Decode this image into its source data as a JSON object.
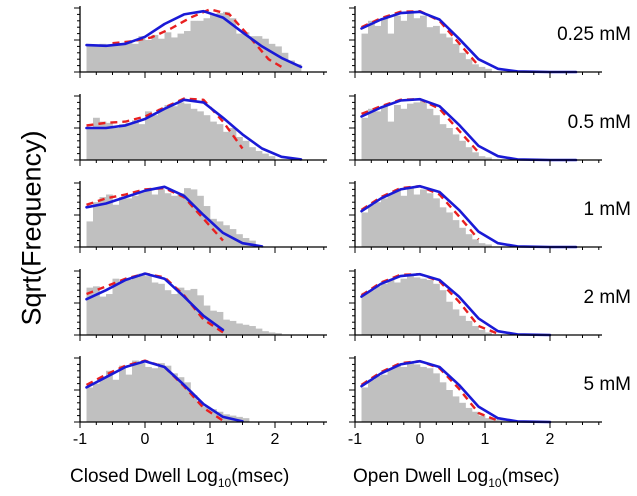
{
  "y_axis_label": "Sqrt(Frequency)",
  "x_axis_labels": {
    "closed": {
      "prefix": "Closed Dwell Log",
      "sub": "10",
      "suffix": "(msec)"
    },
    "open": {
      "prefix": "Open Dwell Log",
      "sub": "10",
      "suffix": "(msec)"
    }
  },
  "colors": {
    "histogram": "#c0c0c0",
    "fit_solid": "#1a1ad6",
    "fit_dashed": "#e82020",
    "axis": "#000000"
  },
  "chart_data": {
    "type": "histogram-grid",
    "x_tick_labels": [
      "-1",
      "0",
      "1",
      "2"
    ],
    "xlim": [
      -1,
      2.8
    ],
    "ylim": [
      0,
      1
    ],
    "grid": false,
    "y_tick_labels_shown": false,
    "panels": [
      {
        "conc": "0.25 mM",
        "kind": "closed",
        "bins": {
          "start": -0.9,
          "width": 0.1,
          "heights": [
            0.42,
            0.42,
            0.44,
            0.4,
            0.46,
            0.44,
            0.46,
            0.44,
            0.56,
            0.5,
            0.58,
            0.52,
            0.62,
            0.54,
            0.6,
            0.64,
            0.8,
            0.8,
            0.84,
            0.9,
            0.92,
            0.94,
            0.84,
            0.6,
            0.62,
            0.56,
            0.56,
            0.52,
            0.44,
            0.4,
            0.3,
            0.18,
            0.12
          ]
        },
        "solid": {
          "x": [
            -0.9,
            -0.6,
            -0.3,
            0.0,
            0.3,
            0.6,
            0.9,
            1.2,
            1.5,
            1.8,
            2.1,
            2.4
          ],
          "y": [
            0.42,
            0.41,
            0.44,
            0.55,
            0.75,
            0.9,
            0.95,
            0.85,
            0.62,
            0.4,
            0.22,
            0.08
          ]
        },
        "dashed": {
          "x": [
            -0.5,
            -0.2,
            0.1,
            0.4,
            0.7,
            1.0,
            1.3,
            1.6,
            1.9,
            2.1
          ],
          "y": [
            0.45,
            0.48,
            0.54,
            0.68,
            0.85,
            0.98,
            0.9,
            0.56,
            0.2,
            0.08
          ]
        }
      },
      {
        "conc": "0.25 mM",
        "kind": "open",
        "bins": {
          "start": -0.9,
          "width": 0.1,
          "heights": [
            0.6,
            0.8,
            0.72,
            0.84,
            0.6,
            0.88,
            0.8,
            0.92,
            0.84,
            0.88,
            0.7,
            0.72,
            0.6,
            0.54,
            0.44,
            0.3,
            0.2,
            0.12,
            0.08,
            0.05
          ]
        },
        "solid": {
          "x": [
            -0.9,
            -0.6,
            -0.3,
            0.0,
            0.3,
            0.6,
            0.9,
            1.2,
            1.5,
            2.0,
            2.4
          ],
          "y": [
            0.68,
            0.82,
            0.92,
            0.94,
            0.82,
            0.52,
            0.2,
            0.05,
            0.01,
            0.0,
            0.0
          ]
        },
        "dashed": {
          "x": [
            -0.9,
            -0.6,
            -0.3,
            0.0,
            0.3,
            0.6,
            0.9
          ],
          "y": [
            0.7,
            0.84,
            0.94,
            0.95,
            0.8,
            0.45,
            0.1
          ]
        }
      },
      {
        "conc": "0.5 mM",
        "kind": "closed",
        "bins": {
          "start": -0.9,
          "width": 0.1,
          "heights": [
            0.52,
            0.66,
            0.6,
            0.58,
            0.5,
            0.56,
            0.58,
            0.62,
            0.56,
            0.76,
            0.7,
            0.8,
            0.86,
            0.84,
            0.9,
            0.88,
            0.8,
            0.76,
            0.7,
            0.6,
            0.56,
            0.44,
            0.5,
            0.36,
            0.3,
            0.2,
            0.14,
            0.1,
            0.06
          ]
        },
        "solid": {
          "x": [
            -0.9,
            -0.6,
            -0.3,
            0.0,
            0.3,
            0.6,
            0.9,
            1.2,
            1.5,
            1.8,
            2.1,
            2.4
          ],
          "y": [
            0.5,
            0.5,
            0.54,
            0.64,
            0.8,
            0.94,
            0.9,
            0.66,
            0.4,
            0.18,
            0.05,
            0.01
          ]
        },
        "dashed": {
          "x": [
            -0.9,
            -0.6,
            -0.3,
            0.0,
            0.3,
            0.6,
            0.9,
            1.2,
            1.5
          ],
          "y": [
            0.54,
            0.58,
            0.6,
            0.68,
            0.82,
            0.96,
            0.94,
            0.6,
            0.18
          ]
        }
      },
      {
        "conc": "0.5 mM",
        "kind": "open",
        "bins": {
          "start": -0.9,
          "width": 0.1,
          "heights": [
            0.66,
            0.8,
            0.76,
            0.84,
            0.6,
            0.86,
            0.8,
            0.88,
            0.9,
            0.92,
            0.8,
            0.7,
            0.56,
            0.5,
            0.4,
            0.3,
            0.2,
            0.12,
            0.06,
            0.04
          ]
        },
        "solid": {
          "x": [
            -0.9,
            -0.6,
            -0.3,
            0.0,
            0.3,
            0.6,
            0.9,
            1.2,
            1.5,
            2.0,
            2.4
          ],
          "y": [
            0.68,
            0.82,
            0.93,
            0.95,
            0.84,
            0.55,
            0.22,
            0.06,
            0.01,
            0.0,
            0.0
          ]
        },
        "dashed": {
          "x": [
            -0.9,
            -0.6,
            -0.3,
            0.0,
            0.3,
            0.6,
            0.9
          ],
          "y": [
            0.72,
            0.84,
            0.94,
            0.95,
            0.8,
            0.46,
            0.12
          ]
        }
      },
      {
        "conc": "1 mM",
        "kind": "closed",
        "bins": {
          "start": -0.9,
          "width": 0.1,
          "heights": [
            0.4,
            0.7,
            0.78,
            0.82,
            0.66,
            0.78,
            0.76,
            0.8,
            0.86,
            0.88,
            0.82,
            0.9,
            0.84,
            0.8,
            0.84,
            0.92,
            0.9,
            0.8,
            0.64,
            0.44,
            0.4,
            0.34,
            0.28,
            0.2,
            0.14,
            0.1
          ]
        },
        "solid": {
          "x": [
            -0.9,
            -0.6,
            -0.3,
            0.0,
            0.3,
            0.6,
            0.9,
            1.2,
            1.5,
            1.8
          ],
          "y": [
            0.62,
            0.68,
            0.78,
            0.88,
            0.94,
            0.8,
            0.5,
            0.22,
            0.06,
            0.01
          ]
        },
        "dashed": {
          "x": [
            -0.9,
            -0.6,
            -0.3,
            0.0,
            0.3,
            0.6,
            0.9,
            1.2
          ],
          "y": [
            0.66,
            0.76,
            0.82,
            0.9,
            0.92,
            0.78,
            0.44,
            0.1
          ]
        }
      },
      {
        "conc": "1 mM",
        "kind": "open",
        "bins": {
          "start": -0.9,
          "width": 0.1,
          "heights": [
            0.54,
            0.66,
            0.7,
            0.76,
            0.84,
            0.9,
            0.8,
            0.94,
            0.82,
            0.9,
            0.84,
            0.76,
            0.62,
            0.54,
            0.42,
            0.3,
            0.2,
            0.12,
            0.06,
            0.04
          ]
        },
        "solid": {
          "x": [
            -0.9,
            -0.6,
            -0.3,
            0.0,
            0.3,
            0.6,
            0.9,
            1.2,
            1.5,
            2.0,
            2.4
          ],
          "y": [
            0.56,
            0.76,
            0.9,
            0.95,
            0.86,
            0.58,
            0.24,
            0.06,
            0.01,
            0.0,
            0.0
          ]
        },
        "dashed": {
          "x": [
            -0.9,
            -0.6,
            -0.3,
            0.0,
            0.3,
            0.6,
            0.9
          ],
          "y": [
            0.58,
            0.78,
            0.92,
            0.95,
            0.82,
            0.48,
            0.12
          ]
        }
      },
      {
        "conc": "2 mM",
        "kind": "closed",
        "bins": {
          "start": -0.9,
          "width": 0.1,
          "heights": [
            0.74,
            0.76,
            0.6,
            0.64,
            0.88,
            0.84,
            0.86,
            0.9,
            0.96,
            0.92,
            0.82,
            0.8,
            0.7,
            0.64,
            0.74,
            0.7,
            0.72,
            0.62,
            0.46,
            0.38,
            0.36,
            0.24,
            0.22,
            0.18,
            0.16,
            0.14,
            0.1,
            0.06,
            0.04,
            0.03
          ]
        },
        "solid": {
          "x": [
            -0.9,
            -0.6,
            -0.3,
            0.0,
            0.3,
            0.6,
            0.9,
            1.2
          ],
          "y": [
            0.56,
            0.7,
            0.86,
            0.96,
            0.88,
            0.6,
            0.3,
            0.08
          ]
        },
        "dashed": {
          "x": [
            -0.9,
            -0.6,
            -0.3,
            0.0,
            0.3,
            0.6,
            0.9,
            1.2
          ],
          "y": [
            0.64,
            0.76,
            0.88,
            0.96,
            0.9,
            0.62,
            0.24,
            0.04
          ]
        }
      },
      {
        "conc": "2 mM",
        "kind": "open",
        "bins": {
          "start": -0.9,
          "width": 0.1,
          "heights": [
            0.66,
            0.7,
            0.76,
            0.8,
            0.86,
            0.82,
            0.88,
            0.92,
            0.9,
            0.88,
            0.86,
            0.8,
            0.7,
            0.52,
            0.4,
            0.3,
            0.22,
            0.14,
            0.08,
            0.04
          ]
        },
        "solid": {
          "x": [
            -0.9,
            -0.6,
            -0.3,
            0.0,
            0.3,
            0.6,
            0.9,
            1.2,
            1.5,
            2.0
          ],
          "y": [
            0.6,
            0.8,
            0.92,
            0.95,
            0.86,
            0.6,
            0.26,
            0.06,
            0.01,
            0.0
          ]
        },
        "dashed": {
          "x": [
            -0.9,
            -0.6,
            -0.3,
            0.0,
            0.3,
            0.6,
            0.9,
            1.2
          ],
          "y": [
            0.62,
            0.82,
            0.94,
            0.95,
            0.84,
            0.52,
            0.14,
            0.02
          ]
        }
      },
      {
        "conc": "5 mM",
        "kind": "closed",
        "bins": {
          "start": -0.9,
          "width": 0.1,
          "heights": [
            0.54,
            0.6,
            0.7,
            0.8,
            0.66,
            0.88,
            0.74,
            0.96,
            0.92,
            0.86,
            0.84,
            0.92,
            0.88,
            0.76,
            0.7,
            0.62,
            0.42,
            0.3,
            0.24,
            0.2,
            0.16,
            0.12,
            0.1,
            0.08,
            0.06
          ]
        },
        "solid": {
          "x": [
            -0.9,
            -0.6,
            -0.3,
            0.0,
            0.3,
            0.6,
            0.9,
            1.2,
            1.5
          ],
          "y": [
            0.54,
            0.7,
            0.86,
            0.95,
            0.86,
            0.58,
            0.28,
            0.08,
            0.01
          ]
        },
        "dashed": {
          "x": [
            -0.9,
            -0.6,
            -0.3,
            0.0,
            0.3,
            0.6,
            0.9,
            1.2
          ],
          "y": [
            0.58,
            0.74,
            0.88,
            0.96,
            0.86,
            0.56,
            0.22,
            0.02
          ]
        }
      },
      {
        "conc": "5 mM",
        "kind": "open",
        "bins": {
          "start": -0.9,
          "width": 0.1,
          "heights": [
            0.54,
            0.66,
            0.72,
            0.74,
            0.84,
            0.9,
            0.86,
            0.92,
            0.9,
            0.86,
            0.84,
            0.76,
            0.62,
            0.5,
            0.4,
            0.3,
            0.22,
            0.16,
            0.1,
            0.06,
            0.04,
            0.03,
            0.02
          ]
        },
        "solid": {
          "x": [
            -0.9,
            -0.6,
            -0.3,
            0.0,
            0.3,
            0.6,
            0.9,
            1.2,
            1.5,
            2.0
          ],
          "y": [
            0.56,
            0.76,
            0.9,
            0.95,
            0.86,
            0.58,
            0.24,
            0.06,
            0.01,
            0.0
          ]
        },
        "dashed": {
          "x": [
            -0.9,
            -0.6,
            -0.3,
            0.0,
            0.3,
            0.6,
            0.9,
            1.2
          ],
          "y": [
            0.58,
            0.78,
            0.92,
            0.95,
            0.84,
            0.52,
            0.14,
            0.02
          ]
        }
      }
    ]
  }
}
